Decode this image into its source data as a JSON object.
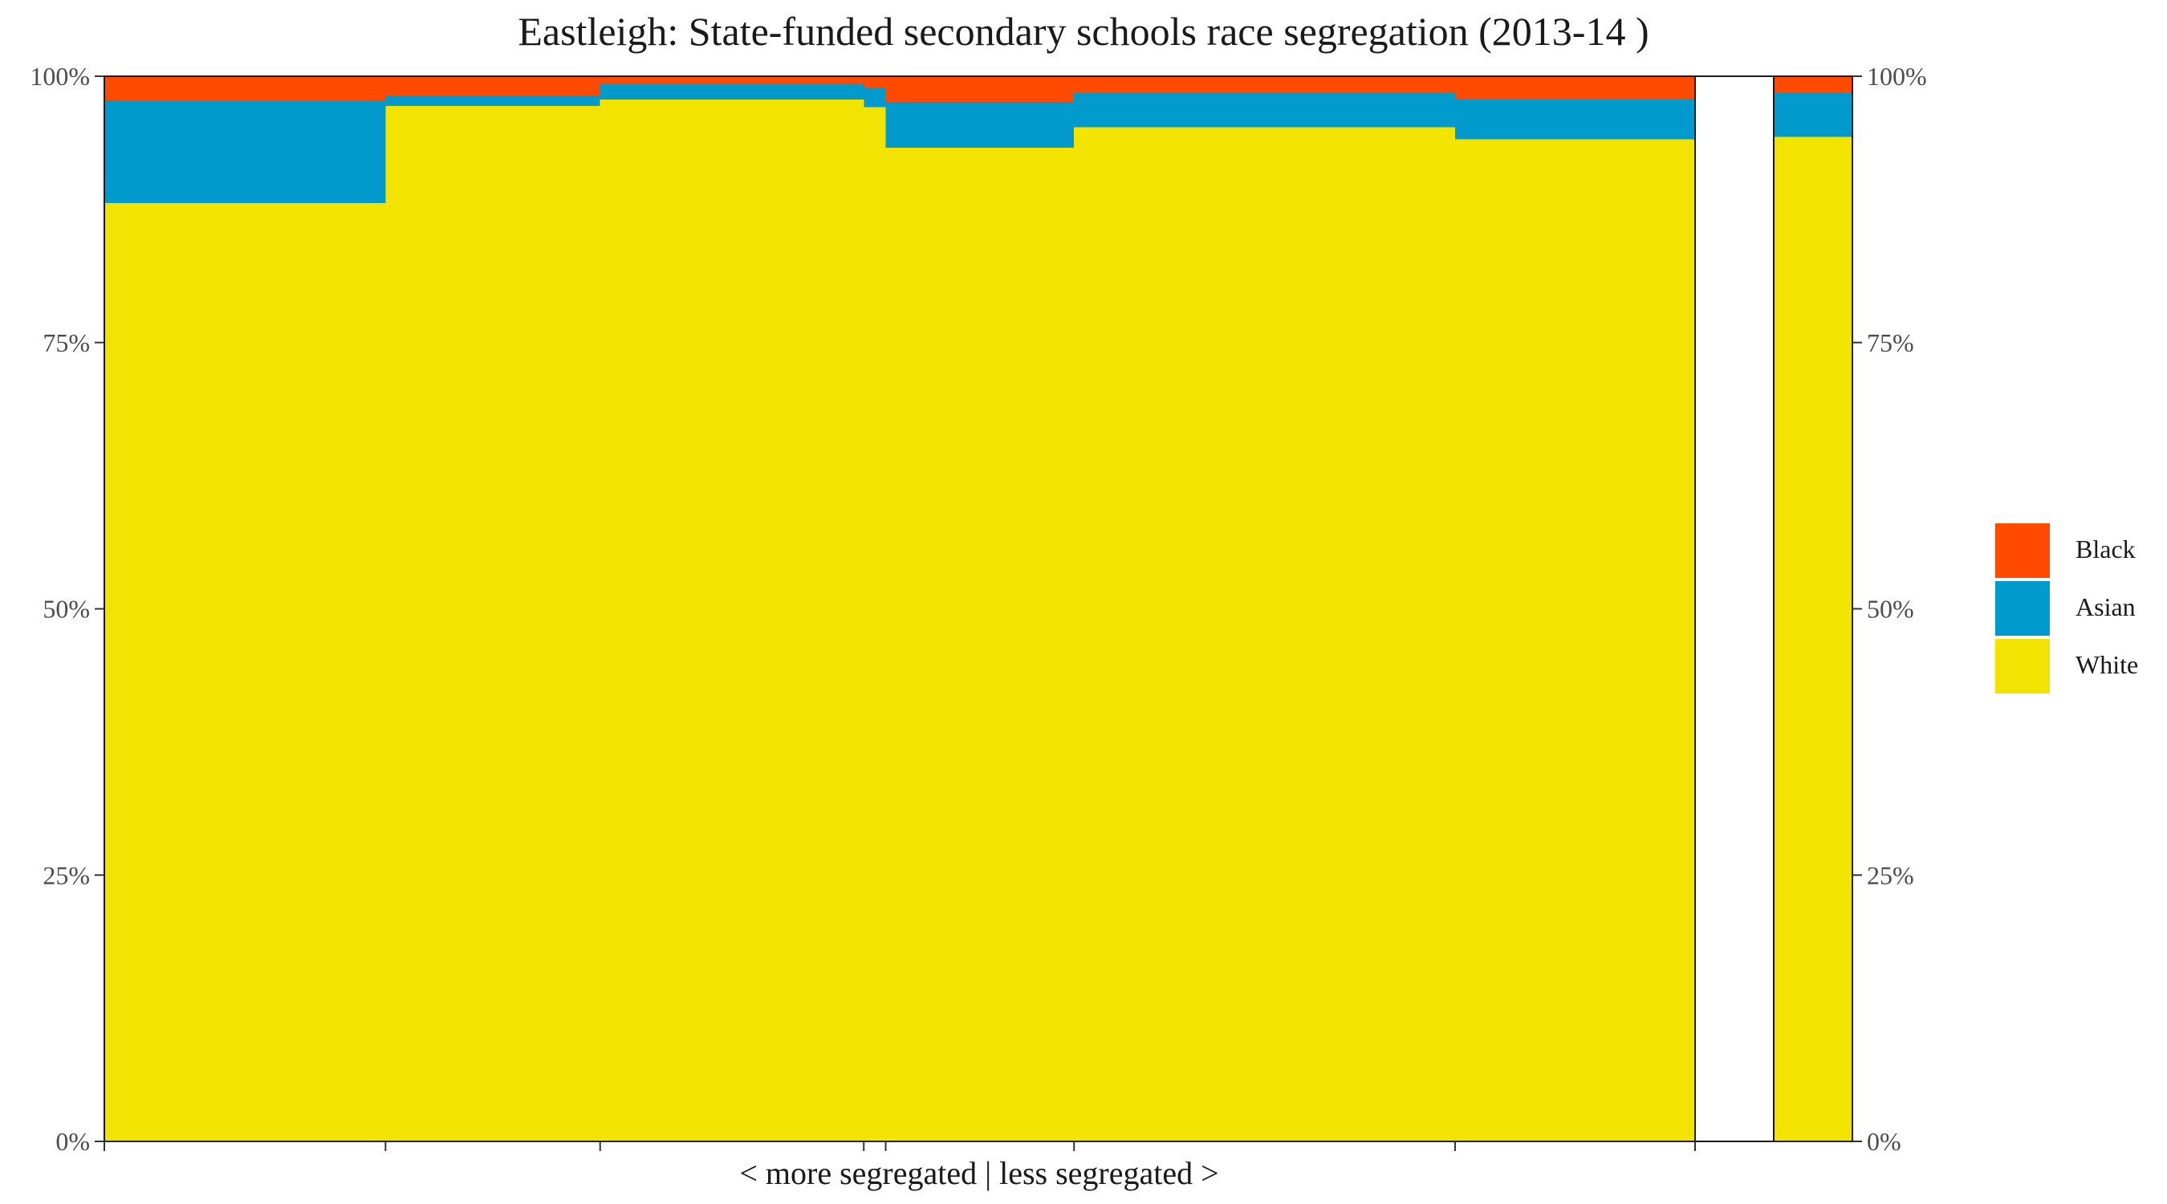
{
  "chart_data": {
    "type": "bar",
    "subtype": "variable-width stacked bar (mosaic)",
    "title": "Eastleigh: State-funded secondary schools race segregation (2013-14 )",
    "xlabel": "< more segregated | less segregated >",
    "ylabel": "",
    "ylim": [
      0,
      100
    ],
    "y_ticks": [
      "0%",
      "25%",
      "50%",
      "75%",
      "100%"
    ],
    "grid": false,
    "legend_placement": "right",
    "stack_order_bottom_to_top": [
      "White",
      "Asian",
      "Black"
    ],
    "series": [
      {
        "name": "Black",
        "color": "#FF4A00"
      },
      {
        "name": "Asian",
        "color": "#009ACD"
      },
      {
        "name": "White",
        "color": "#F2E400"
      }
    ],
    "schools": [
      {
        "share": 0.1605,
        "White": 88.1,
        "Asian": 9.6,
        "Black": 2.3
      },
      {
        "share": 0.1225,
        "White": 97.2,
        "Asian": 1.0,
        "Black": 1.8
      },
      {
        "share": 0.1505,
        "White": 97.8,
        "Asian": 1.5,
        "Black": 0.7
      },
      {
        "share": 0.0125,
        "White": 97.1,
        "Asian": 1.8,
        "Black": 1.1
      },
      {
        "share": 0.1075,
        "White": 93.3,
        "Asian": 4.3,
        "Black": 2.4
      },
      {
        "share": 0.2175,
        "White": 95.2,
        "Asian": 3.2,
        "Black": 1.6
      },
      {
        "share": 0.137,
        "White": 94.1,
        "Asian": 3.8,
        "Black": 2.1
      }
    ],
    "overall": {
      "White": 94.3,
      "Asian": 4.1,
      "Black": 1.6
    }
  }
}
